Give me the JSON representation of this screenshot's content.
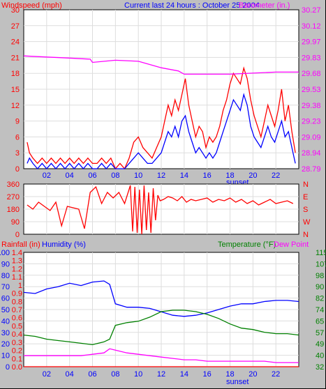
{
  "header": {
    "left_label": "Windspeed (mph)",
    "title": "Current last 24 hours : October 25 2004",
    "right_label": "Barometer (in.)"
  },
  "colors": {
    "background": "#c0c0c0",
    "plot_bg": "#ffffff",
    "wind": "#ff0000",
    "gust": "#0000ff",
    "barometer": "#ff00ff",
    "humidity": "#0000ff",
    "temperature": "#008000",
    "dew_point": "#ff00ff",
    "rainfall": "#ff0000"
  },
  "x_ticks": [
    "02",
    "04",
    "06",
    "08",
    "10",
    "12",
    "14",
    "16",
    "18",
    "20",
    "22"
  ],
  "sunset_label": "sunset",
  "chart_data": [
    {
      "type": "line",
      "panel": "wind_barometer",
      "x_range": [
        0,
        24
      ],
      "left_axis": {
        "label": "Windspeed (mph)",
        "ticks": [
          "0",
          "3",
          "6",
          "9",
          "12",
          "15",
          "18",
          "21",
          "24",
          "27",
          "30"
        ],
        "range": [
          0,
          30
        ]
      },
      "right_axis": {
        "label": "Barometer (in.)",
        "ticks": [
          "28.79",
          "28.94",
          "29.09",
          "29.23",
          "29.38",
          "29.53",
          "29.68",
          "29.83",
          "29.97",
          "30.12",
          "30.27"
        ],
        "range": [
          28.79,
          30.27
        ]
      },
      "series": [
        {
          "role": "wind-high",
          "color": "#ff0000",
          "x": [
            0.3,
            0.5,
            0.8,
            1.2,
            1.6,
            2.0,
            2.4,
            2.8,
            3.2,
            3.6,
            4.0,
            4.4,
            4.8,
            5.2,
            5.6,
            6.0,
            6.4,
            6.8,
            7.2,
            7.6,
            8.0,
            8.4,
            8.8,
            9.2,
            9.6,
            10.0,
            10.4,
            10.8,
            11.2,
            11.6,
            12.0,
            12.3,
            12.6,
            12.9,
            13.2,
            13.5,
            13.8,
            14.1,
            14.4,
            14.7,
            15.0,
            15.3,
            15.6,
            15.9,
            16.2,
            16.5,
            16.8,
            17.1,
            17.4,
            17.7,
            18.0,
            18.3,
            18.6,
            18.9,
            19.2,
            19.5,
            19.8,
            20.1,
            20.4,
            20.7,
            21.0,
            21.3,
            21.6,
            21.9,
            22.2,
            22.5,
            22.8,
            23.1,
            23.4,
            23.7
          ],
          "values": [
            5,
            3,
            2,
            1,
            2,
            1,
            2,
            1,
            2,
            1,
            2,
            1,
            2,
            1,
            2,
            1,
            1,
            2,
            1,
            2,
            0,
            1,
            0,
            2,
            5,
            6,
            4,
            3,
            2,
            4,
            6,
            9,
            12,
            10,
            13,
            11,
            14,
            17,
            12,
            9,
            6,
            8,
            7,
            4,
            6,
            5,
            6,
            8,
            11,
            13,
            16,
            18,
            17,
            16,
            19,
            17,
            13,
            10,
            8,
            6,
            9,
            12,
            10,
            8,
            11,
            15,
            9,
            12,
            7,
            3
          ]
        },
        {
          "role": "wind-avg",
          "color": "#0000ff",
          "x": [
            0.3,
            0.5,
            0.8,
            1.2,
            1.6,
            2.0,
            2.4,
            2.8,
            3.2,
            3.6,
            4.0,
            4.4,
            4.8,
            5.2,
            5.6,
            6.0,
            6.4,
            6.8,
            7.2,
            7.6,
            8.0,
            8.4,
            8.8,
            9.2,
            9.6,
            10.0,
            10.4,
            10.8,
            11.2,
            11.6,
            12.0,
            12.3,
            12.6,
            12.9,
            13.2,
            13.5,
            13.8,
            14.1,
            14.4,
            14.7,
            15.0,
            15.3,
            15.6,
            15.9,
            16.2,
            16.5,
            16.8,
            17.1,
            17.4,
            17.7,
            18.0,
            18.3,
            18.6,
            18.9,
            19.2,
            19.5,
            19.8,
            20.1,
            20.4,
            20.7,
            21.0,
            21.3,
            21.6,
            21.9,
            22.2,
            22.5,
            22.8,
            23.1,
            23.4,
            23.7
          ],
          "values": [
            1,
            2,
            1,
            0,
            1,
            0,
            1,
            0,
            1,
            0,
            1,
            0,
            1,
            0,
            1,
            0,
            0,
            1,
            0,
            1,
            0,
            0,
            0,
            1,
            2,
            3,
            2,
            1,
            1,
            2,
            3,
            5,
            7,
            6,
            8,
            6,
            9,
            10,
            7,
            5,
            3,
            4,
            3,
            2,
            3,
            2,
            3,
            5,
            7,
            9,
            11,
            13,
            12,
            11,
            14,
            12,
            8,
            6,
            5,
            4,
            6,
            8,
            6,
            5,
            7,
            9,
            6,
            7,
            4,
            1
          ]
        },
        {
          "role": "barometer",
          "color": "#ff00ff",
          "x": [
            0,
            2,
            4,
            5.8,
            6,
            8,
            10,
            12,
            13.5,
            14,
            16,
            18,
            20,
            22,
            24
          ],
          "values": [
            29.84,
            29.83,
            29.82,
            29.81,
            29.78,
            29.8,
            29.79,
            29.73,
            29.7,
            29.67,
            29.67,
            29.67,
            29.68,
            29.69,
            29.69
          ]
        }
      ]
    },
    {
      "type": "line",
      "panel": "wind_direction",
      "x_range": [
        0,
        24
      ],
      "left_axis": {
        "ticks": [
          "0",
          "90",
          "180",
          "270",
          "360"
        ],
        "range": [
          0,
          360
        ]
      },
      "right_axis": {
        "ticks": [
          "N",
          "W",
          "S",
          "E",
          "N"
        ]
      },
      "series": [
        {
          "role": "direction",
          "color": "#ff0000",
          "x": [
            0.3,
            0.8,
            1.3,
            1.8,
            2.3,
            2.8,
            3.3,
            3.8,
            4.3,
            4.8,
            5.3,
            5.8,
            6.3,
            6.8,
            7.3,
            7.8,
            8.3,
            8.8,
            9.3,
            9.5,
            9.7,
            9.9,
            10.1,
            10.3,
            10.5,
            10.7,
            10.9,
            11.1,
            11.3,
            11.5,
            11.7,
            11.9,
            12.2,
            12.6,
            13.0,
            13.4,
            13.8,
            14.2,
            14.6,
            15.0,
            15.5,
            16.0,
            16.5,
            17.0,
            17.5,
            18.0,
            18.5,
            19.0,
            19.5,
            20.0,
            20.5,
            21.0,
            21.5,
            22.0,
            22.5,
            23.0,
            23.5
          ],
          "values": [
            210,
            180,
            230,
            200,
            170,
            230,
            60,
            200,
            190,
            180,
            40,
            300,
            340,
            220,
            300,
            260,
            300,
            220,
            350,
            20,
            340,
            10,
            320,
            0,
            350,
            30,
            300,
            10,
            330,
            100,
            280,
            240,
            250,
            270,
            260,
            240,
            270,
            230,
            250,
            240,
            250,
            260,
            230,
            250,
            240,
            260,
            230,
            250,
            220,
            240,
            210,
            230,
            250,
            220,
            230,
            240,
            220
          ]
        }
      ]
    },
    {
      "type": "line",
      "panel": "humidity_temperature",
      "x_range": [
        0,
        24
      ],
      "left_axis_rain": {
        "label": "Rainfall (in)",
        "ticks": [
          "0.0",
          "0.1",
          "0.2",
          "0.3",
          "0.4",
          "0.5",
          "0.6",
          "0.7",
          "0.8",
          "0.9",
          "1",
          "1.1",
          "1.2",
          "1.3",
          "1.4"
        ],
        "range": [
          0,
          1.4
        ]
      },
      "left_axis_humidity": {
        "label": "Humidity (%)",
        "ticks": [
          "0",
          "10",
          "20",
          "30",
          "40",
          "50",
          "60",
          "70",
          "80",
          "90",
          "100"
        ],
        "range": [
          0,
          100
        ]
      },
      "right_axis": {
        "label": "Temperature (°F)",
        "ticks": [
          "32",
          "40",
          "49",
          "57",
          "65",
          "74",
          "82",
          "90",
          "98",
          "107",
          "115"
        ],
        "range": [
          32,
          115
        ]
      },
      "dew_point_label": "Dew Point",
      "series": [
        {
          "role": "humidity",
          "color": "#0000ff",
          "x": [
            0,
            1,
            2,
            3,
            4,
            5,
            6,
            7,
            7.5,
            8,
            9,
            10,
            11,
            12,
            13,
            14,
            15,
            16,
            17,
            18,
            19,
            20,
            21,
            22,
            23,
            24
          ],
          "values": [
            65,
            64,
            68,
            70,
            73,
            71,
            74,
            75,
            72,
            55,
            52,
            52,
            51,
            48,
            45,
            44,
            45,
            47,
            50,
            53,
            55,
            55,
            57,
            58,
            58,
            57
          ]
        },
        {
          "role": "temperature",
          "color": "#008000",
          "x": [
            0,
            1,
            2,
            3,
            4,
            5,
            6,
            7,
            7.5,
            8,
            9,
            10,
            11,
            12,
            13,
            14,
            15,
            16,
            17,
            18,
            19,
            20,
            21,
            22,
            23,
            24
          ],
          "values": [
            55,
            54,
            52,
            51,
            50,
            49,
            48,
            50,
            52,
            62,
            64,
            65,
            68,
            72,
            73,
            73,
            72,
            70,
            67,
            63,
            60,
            59,
            57,
            56,
            56,
            55
          ]
        },
        {
          "role": "dew_point",
          "color": "#ff00ff",
          "x": [
            0,
            1,
            2,
            3,
            4,
            5,
            6,
            7,
            7.5,
            8,
            9,
            10,
            11,
            12,
            13,
            14,
            15,
            16,
            17,
            18,
            19,
            20,
            21,
            22,
            23,
            24
          ],
          "values": [
            40,
            40,
            40,
            40,
            40,
            40,
            41,
            42,
            45,
            44,
            42,
            41,
            40,
            39,
            38,
            37,
            37,
            36,
            36,
            36,
            36,
            36,
            36,
            35,
            35,
            35
          ]
        },
        {
          "role": "rainfall",
          "color": "#ff0000",
          "x": [
            0,
            24
          ],
          "values": [
            0,
            0
          ]
        }
      ]
    }
  ]
}
